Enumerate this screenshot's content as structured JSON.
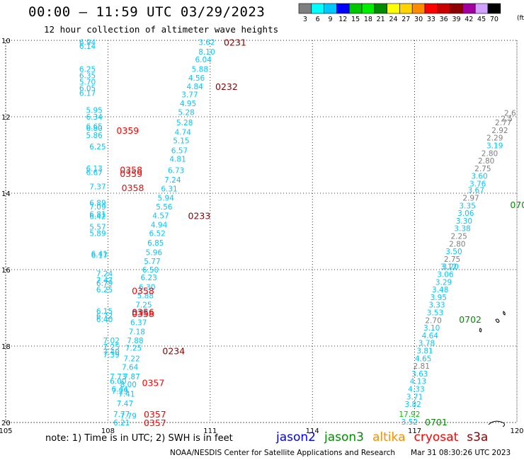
{
  "title": "00:00 – 11:59 UTC 03/29/2023",
  "subtitle": "12 hour collection of altimeter wave heights",
  "color_scale": {
    "unit_label": "(ft)",
    "bins": [
      {
        "label": "3",
        "color": "#7f7f7f"
      },
      {
        "label": "6",
        "color": "#00ffff"
      },
      {
        "label": "9",
        "color": "#00c8ff"
      },
      {
        "label": "12",
        "color": "#0000ff"
      },
      {
        "label": "15",
        "color": "#00c800"
      },
      {
        "label": "18",
        "color": "#00ee00"
      },
      {
        "label": "21",
        "color": "#008c00"
      },
      {
        "label": "24",
        "color": "#ffff00"
      },
      {
        "label": "27",
        "color": "#ffd400"
      },
      {
        "label": "30",
        "color": "#ff8c00"
      },
      {
        "label": "33",
        "color": "#ff0000"
      },
      {
        "label": "36",
        "color": "#c80000"
      },
      {
        "label": "39",
        "color": "#8c0000"
      },
      {
        "label": "42",
        "color": "#a000a0"
      },
      {
        "label": "45",
        "color": "#d2a0ff"
      },
      {
        "label": "70",
        "color": "#000000"
      }
    ]
  },
  "axes": {
    "lon_ticks": [
      "105",
      "108",
      "111",
      "114",
      "117",
      "120"
    ],
    "lat_ticks": [
      "10",
      "12",
      "14",
      "16",
      "18",
      "20"
    ]
  },
  "mission_colors": {
    "jason2": "#0000ff",
    "jason3": "#008c00",
    "altika": "#ff8c00",
    "cryosat": "#ff0000",
    "s3a": "#8c0000"
  },
  "tracks": [
    {
      "color": "#00e8ff",
      "lon_start": 107.4,
      "lat_start": 10.05,
      "lon_end": 107.3,
      "lat_end": 20.0
    },
    {
      "color": "#00e8ff",
      "lon_start": 111.2,
      "lat_start": 10.05,
      "lon_end": 108.0,
      "lat_end": 20.0
    },
    {
      "color": "#00e8ff",
      "lon_start": 120.0,
      "lat_start": 12.2,
      "lon_end": 116.8,
      "lat_end": 20.0
    }
  ],
  "track_labels": [
    {
      "text": "6.94",
      "lon": 107.4,
      "lat": 10.05,
      "color": "#00c8ff"
    },
    {
      "text": "6.14",
      "lon": 107.4,
      "lat": 10.15,
      "color": "#00c8ff"
    },
    {
      "text": "6.25",
      "lon": 107.4,
      "lat": 10.75,
      "color": "#00c8ff"
    },
    {
      "text": "6.35",
      "lon": 107.4,
      "lat": 10.92,
      "color": "#00c8ff"
    },
    {
      "text": "5.70",
      "lon": 107.4,
      "lat": 11.08,
      "color": "#00c8ff"
    },
    {
      "text": "6.05",
      "lon": 107.4,
      "lat": 11.25,
      "color": "#00c8ff"
    },
    {
      "text": "6.17",
      "lon": 107.4,
      "lat": 11.38,
      "color": "#00c8ff"
    },
    {
      "text": "5.95",
      "lon": 107.6,
      "lat": 11.82,
      "color": "#00c8ff"
    },
    {
      "text": "6.34",
      "lon": 107.6,
      "lat": 12.0,
      "color": "#00c8ff"
    },
    {
      "text": "6.65",
      "lon": 107.6,
      "lat": 12.25,
      "color": "#00c8ff"
    },
    {
      "text": "6.80",
      "lon": 107.6,
      "lat": 12.3,
      "color": "#00c8ff"
    },
    {
      "text": "5.86",
      "lon": 107.6,
      "lat": 12.48,
      "color": "#00c8ff"
    },
    {
      "text": "6.25",
      "lon": 107.7,
      "lat": 12.78,
      "color": "#00c8ff"
    },
    {
      "text": "6.13",
      "lon": 107.6,
      "lat": 13.35,
      "color": "#00c8ff"
    },
    {
      "text": "6.67",
      "lon": 107.6,
      "lat": 13.45,
      "color": "#00c8ff"
    },
    {
      "text": "7.37",
      "lon": 107.7,
      "lat": 13.82,
      "color": "#00c8ff"
    },
    {
      "text": "6.89",
      "lon": 107.7,
      "lat": 14.25,
      "color": "#00c8ff"
    },
    {
      "text": "7.09",
      "lon": 107.7,
      "lat": 14.35,
      "color": "#00c8ff"
    },
    {
      "text": "6.81",
      "lon": 107.7,
      "lat": 14.55,
      "color": "#00c8ff"
    },
    {
      "text": "6.42",
      "lon": 107.7,
      "lat": 14.6,
      "color": "#00c8ff"
    },
    {
      "text": "5.57",
      "lon": 107.7,
      "lat": 14.88,
      "color": "#00c8ff"
    },
    {
      "text": "5.89",
      "lon": 107.7,
      "lat": 15.05,
      "color": "#00c8ff"
    },
    {
      "text": "6.41",
      "lon": 107.75,
      "lat": 15.58,
      "color": "#00c8ff"
    },
    {
      "text": "6.17",
      "lon": 107.75,
      "lat": 15.62,
      "color": "#00c8ff"
    },
    {
      "text": "7.24",
      "lon": 107.9,
      "lat": 16.1,
      "color": "#00c8ff"
    },
    {
      "text": "7.47",
      "lon": 107.9,
      "lat": 16.28,
      "color": "#00c8ff"
    },
    {
      "text": "6.79",
      "lon": 107.9,
      "lat": 16.35,
      "color": "#00c8ff"
    },
    {
      "text": "6.25",
      "lon": 107.9,
      "lat": 16.52,
      "color": "#00c8ff"
    },
    {
      "text": "6.15",
      "lon": 107.9,
      "lat": 17.08,
      "color": "#00c8ff"
    },
    {
      "text": "6.72",
      "lon": 107.9,
      "lat": 17.2,
      "color": "#00c8ff"
    },
    {
      "text": "6.40",
      "lon": 107.9,
      "lat": 17.3,
      "color": "#00c8ff"
    },
    {
      "text": "7.02",
      "lon": 108.1,
      "lat": 17.85,
      "color": "#00c8ff"
    },
    {
      "text": "7.25",
      "lon": 108.1,
      "lat": 18.02,
      "color": "#00c8ff"
    },
    {
      "text": "7.40",
      "lon": 108.1,
      "lat": 18.15,
      "color": "#00c8ff"
    },
    {
      "text": "7.39",
      "lon": 108.1,
      "lat": 18.22,
      "color": "#00c8ff"
    },
    {
      "text": "7.73",
      "lon": 108.3,
      "lat": 18.8,
      "color": "#00c8ff"
    },
    {
      "text": "7.87",
      "lon": 108.7,
      "lat": 18.8,
      "color": "#00c8ff"
    },
    {
      "text": "6.00",
      "lon": 108.3,
      "lat": 18.92,
      "color": "#00c8ff"
    },
    {
      "text": "6.44",
      "lon": 108.35,
      "lat": 19.12,
      "color": "#00c8ff"
    },
    {
      "text": "7.29",
      "lon": 108.35,
      "lat": 19.18,
      "color": "#00c8ff"
    },
    {
      "text": "7.77",
      "lon": 108.4,
      "lat": 19.78,
      "color": "#00c8ff"
    },
    {
      "text": "7.79",
      "lon": 108.6,
      "lat": 19.82,
      "color": "#00c8ff"
    },
    {
      "text": "6.21",
      "lon": 108.4,
      "lat": 20.0,
      "color": "#00c8ff"
    },
    {
      "text": "3.62",
      "lon": 110.9,
      "lat": 10.05,
      "color": "#00c8ff"
    },
    {
      "text": "8.10",
      "lon": 110.9,
      "lat": 10.3,
      "color": "#00c8ff"
    },
    {
      "text": "6.04",
      "lon": 110.8,
      "lat": 10.5,
      "color": "#00c8ff"
    },
    {
      "text": "5.88",
      "lon": 110.7,
      "lat": 10.75,
      "color": "#00c8ff"
    },
    {
      "text": "4.56",
      "lon": 110.6,
      "lat": 10.98,
      "color": "#00c8ff"
    },
    {
      "text": "4.84",
      "lon": 110.55,
      "lat": 11.2,
      "color": "#00c8ff"
    },
    {
      "text": "3.77",
      "lon": 110.4,
      "lat": 11.42,
      "color": "#00c8ff"
    },
    {
      "text": "4.95",
      "lon": 110.35,
      "lat": 11.65,
      "color": "#00c8ff"
    },
    {
      "text": "5.28",
      "lon": 110.3,
      "lat": 11.88,
      "color": "#00c8ff"
    },
    {
      "text": "5.28",
      "lon": 110.25,
      "lat": 12.15,
      "color": "#00c8ff"
    },
    {
      "text": "4.74",
      "lon": 110.2,
      "lat": 12.4,
      "color": "#00c8ff"
    },
    {
      "text": "5.15",
      "lon": 110.15,
      "lat": 12.62,
      "color": "#00c8ff"
    },
    {
      "text": "6.57",
      "lon": 110.1,
      "lat": 12.88,
      "color": "#00c8ff"
    },
    {
      "text": "4.81",
      "lon": 110.05,
      "lat": 13.1,
      "color": "#00c8ff"
    },
    {
      "text": "6.73",
      "lon": 110.0,
      "lat": 13.4,
      "color": "#00c8ff"
    },
    {
      "text": "7.24",
      "lon": 109.9,
      "lat": 13.65,
      "color": "#00c8ff"
    },
    {
      "text": "6.31",
      "lon": 109.8,
      "lat": 13.88,
      "color": "#00c8ff"
    },
    {
      "text": "5.94",
      "lon": 109.7,
      "lat": 14.12,
      "color": "#00c8ff"
    },
    {
      "text": "5.56",
      "lon": 109.65,
      "lat": 14.35,
      "color": "#00c8ff"
    },
    {
      "text": "4.57",
      "lon": 109.55,
      "lat": 14.58,
      "color": "#00c8ff"
    },
    {
      "text": "4.94",
      "lon": 109.5,
      "lat": 14.82,
      "color": "#00c8ff"
    },
    {
      "text": "6.52",
      "lon": 109.45,
      "lat": 15.05,
      "color": "#00c8ff"
    },
    {
      "text": "6.85",
      "lon": 109.4,
      "lat": 15.3,
      "color": "#00c8ff"
    },
    {
      "text": "5.96",
      "lon": 109.35,
      "lat": 15.55,
      "color": "#00c8ff"
    },
    {
      "text": "5.77",
      "lon": 109.3,
      "lat": 15.78,
      "color": "#00c8ff"
    },
    {
      "text": "6.50",
      "lon": 109.25,
      "lat": 16.0,
      "color": "#00c8ff"
    },
    {
      "text": "6.23",
      "lon": 109.2,
      "lat": 16.2,
      "color": "#00c8ff"
    },
    {
      "text": "6.30",
      "lon": 109.15,
      "lat": 16.45,
      "color": "#00c8ff"
    },
    {
      "text": "5.88",
      "lon": 109.1,
      "lat": 16.68,
      "color": "#00c8ff"
    },
    {
      "text": "7.25",
      "lon": 109.05,
      "lat": 16.92,
      "color": "#00c8ff"
    },
    {
      "text": "6.96",
      "lon": 108.95,
      "lat": 17.12,
      "color": "#00c8ff"
    },
    {
      "text": "6.37",
      "lon": 108.9,
      "lat": 17.38,
      "color": "#00c8ff"
    },
    {
      "text": "7.18",
      "lon": 108.85,
      "lat": 17.62,
      "color": "#00c8ff"
    },
    {
      "text": "7.88",
      "lon": 108.8,
      "lat": 17.85,
      "color": "#00c8ff"
    },
    {
      "text": "7.25",
      "lon": 108.75,
      "lat": 18.05,
      "color": "#00c8ff"
    },
    {
      "text": "7.22",
      "lon": 108.7,
      "lat": 18.32,
      "color": "#00c8ff"
    },
    {
      "text": "7.64",
      "lon": 108.65,
      "lat": 18.55,
      "color": "#00c8ff"
    },
    {
      "text": "8.00",
      "lon": 108.6,
      "lat": 19.0,
      "color": "#00c8ff"
    },
    {
      "text": "7.41",
      "lon": 108.55,
      "lat": 19.25,
      "color": "#00c8ff"
    },
    {
      "text": "7.47",
      "lon": 108.5,
      "lat": 19.5,
      "color": "#00c8ff"
    },
    {
      "text": "2.6",
      "lon": 119.8,
      "lat": 11.9,
      "color": "#7f7f7f"
    },
    {
      "text": "2.5",
      "lon": 119.7,
      "lat": 12.05,
      "color": "#7f7f7f"
    },
    {
      "text": "2.77",
      "lon": 119.6,
      "lat": 12.15,
      "color": "#7f7f7f"
    },
    {
      "text": "2.92",
      "lon": 119.5,
      "lat": 12.35,
      "color": "#7f7f7f"
    },
    {
      "text": "2.29",
      "lon": 119.35,
      "lat": 12.55,
      "color": "#7f7f7f"
    },
    {
      "text": "3.19",
      "lon": 119.35,
      "lat": 12.75,
      "color": "#00c8ff"
    },
    {
      "text": "2.80",
      "lon": 119.2,
      "lat": 12.95,
      "color": "#7f7f7f"
    },
    {
      "text": "2.80",
      "lon": 119.1,
      "lat": 13.15,
      "color": "#7f7f7f"
    },
    {
      "text": "2.75",
      "lon": 119.0,
      "lat": 13.35,
      "color": "#7f7f7f"
    },
    {
      "text": "3.60",
      "lon": 118.9,
      "lat": 13.55,
      "color": "#00c8ff"
    },
    {
      "text": "3.76",
      "lon": 118.85,
      "lat": 13.75,
      "color": "#00c8ff"
    },
    {
      "text": "3.67",
      "lon": 118.8,
      "lat": 13.92,
      "color": "#00c8ff"
    },
    {
      "text": "2.97",
      "lon": 118.65,
      "lat": 14.12,
      "color": "#7f7f7f"
    },
    {
      "text": "3.35",
      "lon": 118.55,
      "lat": 14.32,
      "color": "#00c8ff"
    },
    {
      "text": "3.06",
      "lon": 118.5,
      "lat": 14.52,
      "color": "#00c8ff"
    },
    {
      "text": "3.30",
      "lon": 118.45,
      "lat": 14.72,
      "color": "#00c8ff"
    },
    {
      "text": "3.38",
      "lon": 118.4,
      "lat": 14.92,
      "color": "#00c8ff"
    },
    {
      "text": "2.25",
      "lon": 118.3,
      "lat": 15.12,
      "color": "#7f7f7f"
    },
    {
      "text": "2.80",
      "lon": 118.25,
      "lat": 15.32,
      "color": "#7f7f7f"
    },
    {
      "text": "3.50",
      "lon": 118.15,
      "lat": 15.52,
      "color": "#00c8ff"
    },
    {
      "text": "2.75",
      "lon": 118.1,
      "lat": 15.72,
      "color": "#7f7f7f"
    },
    {
      "text": "3.20",
      "lon": 118.05,
      "lat": 15.92,
      "color": "#00c8ff"
    },
    {
      "text": "3.12",
      "lon": 118.0,
      "lat": 15.92,
      "color": "#00c8ff"
    },
    {
      "text": "3.06",
      "lon": 117.9,
      "lat": 16.12,
      "color": "#00c8ff"
    },
    {
      "text": "3.29",
      "lon": 117.85,
      "lat": 16.32,
      "color": "#00c8ff"
    },
    {
      "text": "3.48",
      "lon": 117.75,
      "lat": 16.52,
      "color": "#00c8ff"
    },
    {
      "text": "3.95",
      "lon": 117.7,
      "lat": 16.72,
      "color": "#00c8ff"
    },
    {
      "text": "3.33",
      "lon": 117.65,
      "lat": 16.92,
      "color": "#00c8ff"
    },
    {
      "text": "3.53",
      "lon": 117.6,
      "lat": 17.12,
      "color": "#00c8ff"
    },
    {
      "text": "2.70",
      "lon": 117.55,
      "lat": 17.32,
      "color": "#7f7f7f"
    },
    {
      "text": "3.10",
      "lon": 117.5,
      "lat": 17.52,
      "color": "#00c8ff"
    },
    {
      "text": "4.64",
      "lon": 117.45,
      "lat": 17.72,
      "color": "#00c8ff"
    },
    {
      "text": "3.78",
      "lon": 117.35,
      "lat": 17.92,
      "color": "#00c8ff"
    },
    {
      "text": "3.81",
      "lon": 117.3,
      "lat": 18.12,
      "color": "#00c8ff"
    },
    {
      "text": "4.65",
      "lon": 117.25,
      "lat": 18.32,
      "color": "#00c8ff"
    },
    {
      "text": "2.81",
      "lon": 117.2,
      "lat": 18.52,
      "color": "#7f7f7f"
    },
    {
      "text": "3.63",
      "lon": 117.15,
      "lat": 18.72,
      "color": "#00c8ff"
    },
    {
      "text": "4.13",
      "lon": 117.1,
      "lat": 18.92,
      "color": "#00c8ff"
    },
    {
      "text": "4.33",
      "lon": 117.05,
      "lat": 19.12,
      "color": "#00c8ff"
    },
    {
      "text": "3.71",
      "lon": 117.0,
      "lat": 19.32,
      "color": "#00c8ff"
    },
    {
      "text": "3.82",
      "lon": 116.95,
      "lat": 19.52,
      "color": "#00c8ff"
    },
    {
      "text": "17.92",
      "lon": 116.85,
      "lat": 19.78,
      "color": "#00c800"
    },
    {
      "text": "3.52",
      "lon": 116.85,
      "lat": 19.98,
      "color": "#00c8ff"
    }
  ],
  "pass_labels": [
    {
      "text": "0231",
      "lon": 111.4,
      "lat": 10.05,
      "color": "#8c0000"
    },
    {
      "text": "0232",
      "lon": 111.15,
      "lat": 11.2,
      "color": "#8c0000"
    },
    {
      "text": "0359",
      "lon": 108.25,
      "lat": 12.35,
      "color": "#ff0000"
    },
    {
      "text": "0358",
      "lon": 108.35,
      "lat": 13.38,
      "color": "#ff0000"
    },
    {
      "text": "0359",
      "lon": 108.35,
      "lat": 13.48,
      "color": "#ff0000"
    },
    {
      "text": "0358",
      "lon": 108.4,
      "lat": 13.85,
      "color": "#ff0000"
    },
    {
      "text": "0233",
      "lon": 110.35,
      "lat": 14.58,
      "color": "#8c0000"
    },
    {
      "text": "0358",
      "lon": 108.7,
      "lat": 16.55,
      "color": "#ff0000"
    },
    {
      "text": "0356",
      "lon": 108.7,
      "lat": 17.1,
      "color": "#ff0000"
    },
    {
      "text": "0358",
      "lon": 108.7,
      "lat": 17.15,
      "color": "#ff0000"
    },
    {
      "text": "0234",
      "lon": 109.6,
      "lat": 18.12,
      "color": "#8c0000"
    },
    {
      "text": "0357",
      "lon": 109.0,
      "lat": 18.95,
      "color": "#ff0000"
    },
    {
      "text": "0357",
      "lon": 109.05,
      "lat": 19.78,
      "color": "#ff0000"
    },
    {
      "text": "0357",
      "lon": 109.05,
      "lat": 20.0,
      "color": "#ff0000"
    },
    {
      "text": "070",
      "lon": 119.8,
      "lat": 14.3,
      "color": "#008c00"
    },
    {
      "text": "0702",
      "lon": 118.3,
      "lat": 17.3,
      "color": "#008c00"
    },
    {
      "text": "0701",
      "lon": 117.3,
      "lat": 19.98,
      "color": "#008c00"
    }
  ],
  "note": "note: 1) Time is in UTC; 2) SWH is in feet",
  "missions": [
    {
      "name": "jason2",
      "color": "#0000ff"
    },
    {
      "name": "jason3",
      "color": "#008c00"
    },
    {
      "name": "altika",
      "color": "#ff8c00"
    },
    {
      "name": "cryosat",
      "color": "#ff0000"
    },
    {
      "name": "s3a",
      "color": "#8c0000"
    }
  ],
  "credit": "NOAA/NESDIS Center for Satellite Applications and Research",
  "credit_time": "Mar 31 08:30:26 UTC 2023"
}
